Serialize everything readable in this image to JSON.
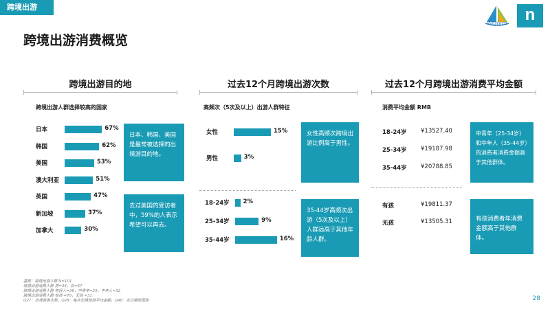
{
  "header": {
    "tag": "跨境出游",
    "logo_text": "Western",
    "brand_badge": "n",
    "page_title": "跨境出游消费概览",
    "page_number": "28"
  },
  "sections": {
    "destination": {
      "title": "跨境出游目的地",
      "subtitle": "跨境出游人群选择较高的国家",
      "notes": [
        "日本、韩国、美国是最常被选择的出境游目的地。",
        "去过美国的受访者中，59%的人表示希望可以再去。"
      ]
    },
    "frequency": {
      "title": "过去12个月跨境出游次数",
      "subtitle": "高频次（5次及以上）出游人群特征",
      "notes": [
        "女性高频次跨境出游比例高于男性。",
        "35-44岁高频次出游（5次及以上）人群远高于其他年龄人群。"
      ]
    },
    "spending": {
      "title": "过去12个月跨境出游消费平均金额",
      "subtitle": "消费平均金额 RMB",
      "age_rows": [
        {
          "label": "18-24岁",
          "value": "¥13527.40"
        },
        {
          "label": "25-34岁",
          "value": "¥19187.98"
        },
        {
          "label": "35-44岁",
          "value": "¥20788.85"
        }
      ],
      "child_rows": [
        {
          "label": "有孩",
          "value": "¥19811.37"
        },
        {
          "label": "无孩",
          "value": "¥13505.31"
        }
      ],
      "notes": [
        "中青年（25-34岁）和中年人（35-44岁）的消费者消费金额高于其他群体。",
        "有孩消费者年消费金额高于其他群体。"
      ]
    }
  },
  "footnotes": [
    "基数：跨境出游人群 N=101",
    "跨境出游消费人群 男=34，女=67",
    "跨境出游消费人群 年轻人=36，中青年=33，中年人=32",
    "跨境出游消费人群 有孩 =70，无孩 =31",
    "Q27：出境旅游次数，Q28：每次出境旅游平均金额，Q48：去过哪些国家"
  ],
  "colors": {
    "accent": "#1a9bb5"
  },
  "chart_data": [
    {
      "type": "bar",
      "orientation": "horizontal",
      "title": "跨境出游人群选择较高的国家",
      "categories": [
        "日本",
        "韩国",
        "美国",
        "澳大利亚",
        "英国",
        "新加坡",
        "加拿大"
      ],
      "values": [
        67,
        62,
        53,
        51,
        47,
        37,
        30
      ],
      "unit": "%"
    },
    {
      "type": "bar",
      "orientation": "horizontal",
      "title": "高频次（5次及以上）出游人群特征 - 性别",
      "categories": [
        "女性",
        "男性"
      ],
      "values": [
        15,
        3
      ],
      "unit": "%"
    },
    {
      "type": "bar",
      "orientation": "horizontal",
      "title": "高频次（5次及以上）出游人群特征 - 年龄",
      "categories": [
        "18-24岁",
        "25-34岁",
        "35-44岁"
      ],
      "values": [
        2,
        9,
        16
      ],
      "unit": "%"
    }
  ]
}
